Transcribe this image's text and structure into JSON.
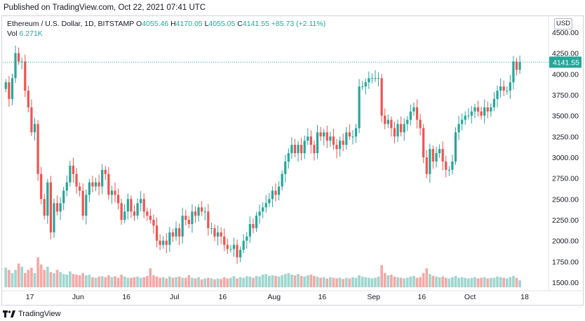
{
  "header": {
    "published": "Published on TradingView.com, Oct 22, 2021 07:41 UTC"
  },
  "legend": {
    "symbol": "Ethereum / U.S. Dollar, 1D, BITSTAMP",
    "o_label": "O",
    "o": "4055.46",
    "h_label": "H",
    "h": "4170.05",
    "l_label": "L",
    "l": "4055.05",
    "c_label": "C",
    "c": "4141.55",
    "change": "+85.73 (+2.11%)",
    "vol_label": "Vol",
    "vol": "6.271K"
  },
  "currency": "USD",
  "last_price_label": "4141.55",
  "footer": {
    "brand": "TradingView"
  },
  "colors": {
    "up": "#26a69a",
    "down": "#ef5350",
    "up_vol": "#9ed6cf",
    "down_vol": "#f5a8a6"
  },
  "chart_data": {
    "type": "candlestick",
    "ylim": [
      1400,
      4600
    ],
    "y_ticks": [
      "4500.00",
      "4250.00",
      "4000.00",
      "3750.00",
      "3500.00",
      "3250.00",
      "3000.00",
      "2750.00",
      "2500.00",
      "2250.00",
      "2000.00",
      "1750.00",
      "1500.00"
    ],
    "y_tick_values": [
      4500,
      4250,
      4000,
      3750,
      3500,
      3250,
      3000,
      2750,
      2500,
      2250,
      2000,
      1750,
      1500
    ],
    "x_ticks": [
      {
        "label": "17",
        "date": "2021-05-17"
      },
      {
        "label": "Jun",
        "date": "2021-06-01"
      },
      {
        "label": "16",
        "date": "2021-06-16"
      },
      {
        "label": "Jul",
        "date": "2021-07-01"
      },
      {
        "label": "16",
        "date": "2021-07-16"
      },
      {
        "label": "Aug",
        "date": "2021-08-01"
      },
      {
        "label": "16",
        "date": "2021-08-16"
      },
      {
        "label": "Sep",
        "date": "2021-09-01"
      },
      {
        "label": "16",
        "date": "2021-09-16"
      },
      {
        "label": "Oct",
        "date": "2021-10-01"
      },
      {
        "label": "18",
        "date": "2021-10-18"
      }
    ],
    "x_start": "2021-05-09",
    "last_price": 4141.55,
    "closes": [
      3900,
      3700,
      3950,
      4250,
      4150,
      4150,
      3800,
      3600,
      3300,
      3400,
      2800,
      2500,
      2300,
      2700,
      2100,
      2450,
      2350,
      2450,
      2600,
      2700,
      2900,
      2800,
      2650,
      2600,
      2300,
      2550,
      2700,
      2650,
      2700,
      2650,
      2850,
      2800,
      2550,
      2600,
      2550,
      2450,
      2250,
      2350,
      2500,
      2350,
      2300,
      2450,
      2500,
      2350,
      2300,
      2250,
      2180,
      2000,
      1950,
      2000,
      1950,
      2100,
      2050,
      2150,
      2050,
      2300,
      2250,
      2200,
      2350,
      2300,
      2400,
      2350,
      2350,
      2150,
      2150,
      2050,
      2100,
      2050,
      1950,
      1900,
      1900,
      1950,
      1800,
      1890,
      2000,
      2050,
      2200,
      2150,
      2300,
      2350,
      2400,
      2450,
      2500,
      2600,
      2550,
      2650,
      2800,
      2950,
      3050,
      3150,
      3050,
      3150,
      3050,
      3200,
      3250,
      3150,
      3050,
      3300,
      3250,
      3300,
      3200,
      3250,
      3150,
      3100,
      3200,
      3150,
      3300,
      3250,
      3250,
      3350,
      3850,
      3850,
      3900,
      3950,
      3950,
      3950,
      3950,
      3500,
      3400,
      3450,
      3350,
      3250,
      3400,
      3300,
      3400,
      3450,
      3550,
      3600,
      3450,
      3350,
      3000,
      2800,
      3100,
      2950,
      3050,
      3100,
      2950,
      2850,
      2850,
      2950,
      3300,
      3400,
      3450,
      3500,
      3500,
      3550,
      3600,
      3550,
      3500,
      3600,
      3550,
      3600,
      3700,
      3800,
      3850,
      3800,
      3800,
      3900,
      4150,
      4050,
      4141.55
    ],
    "volumes": [
      0.62,
      0.55,
      0.45,
      0.55,
      0.75,
      0.65,
      0.45,
      0.55,
      0.62,
      0.45,
      0.95,
      0.72,
      0.55,
      0.65,
      0.48,
      0.45,
      0.55,
      0.48,
      0.42,
      0.4,
      0.5,
      0.42,
      0.4,
      0.38,
      0.45,
      0.38,
      0.4,
      0.32,
      0.3,
      0.34,
      0.35,
      0.32,
      0.38,
      0.32,
      0.35,
      0.3,
      0.4,
      0.34,
      0.3,
      0.3,
      0.32,
      0.34,
      0.3,
      0.32,
      0.36,
      0.6,
      0.38,
      0.34,
      0.3,
      0.32,
      0.28,
      0.34,
      0.3,
      0.32,
      0.34,
      0.3,
      0.3,
      0.38,
      0.3,
      0.28,
      0.32,
      0.25,
      0.28,
      0.3,
      0.28,
      0.25,
      0.28,
      0.26,
      0.32,
      0.28,
      0.3,
      0.35,
      0.28,
      0.32,
      0.3,
      0.35,
      0.34,
      0.3,
      0.36,
      0.34,
      0.4,
      0.42,
      0.36,
      0.38,
      0.36,
      0.34,
      0.38,
      0.42,
      0.45,
      0.4,
      0.38,
      0.42,
      0.36,
      0.34,
      0.38,
      0.4,
      0.36,
      0.34,
      0.3,
      0.32,
      0.28,
      0.32,
      0.3,
      0.28,
      0.3,
      0.26,
      0.3,
      0.28,
      0.32,
      0.3,
      0.38,
      0.34,
      0.32,
      0.3,
      0.28,
      0.3,
      0.34,
      0.7,
      0.45,
      0.38,
      0.4,
      0.34,
      0.32,
      0.3,
      0.28,
      0.3,
      0.34,
      0.36,
      0.3,
      0.32,
      0.45,
      0.6,
      0.42,
      0.36,
      0.34,
      0.32,
      0.34,
      0.3,
      0.28,
      0.32,
      0.36,
      0.3,
      0.32,
      0.3,
      0.28,
      0.3,
      0.32,
      0.28,
      0.3,
      0.32,
      0.28,
      0.3,
      0.3,
      0.34,
      0.32,
      0.3,
      0.28,
      0.32,
      0.36,
      0.3,
      0.22
    ]
  }
}
